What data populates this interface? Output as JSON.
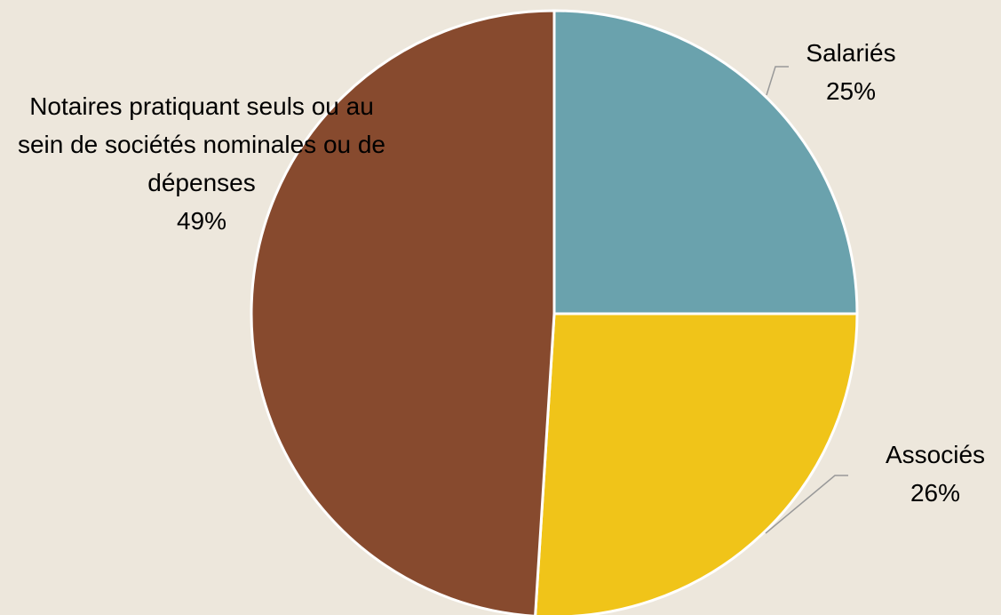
{
  "chart_data": {
    "type": "pie",
    "categories": [
      "Salariés",
      "Associés",
      "Notaires pratiquant seuls ou au sein de sociétés nominales ou de dépenses"
    ],
    "values": [
      25,
      26,
      49
    ],
    "value_labels": [
      "25%",
      "26%",
      "49%"
    ],
    "colors": [
      "#6aa2ad",
      "#f0c419",
      "#874a2e"
    ]
  }
}
